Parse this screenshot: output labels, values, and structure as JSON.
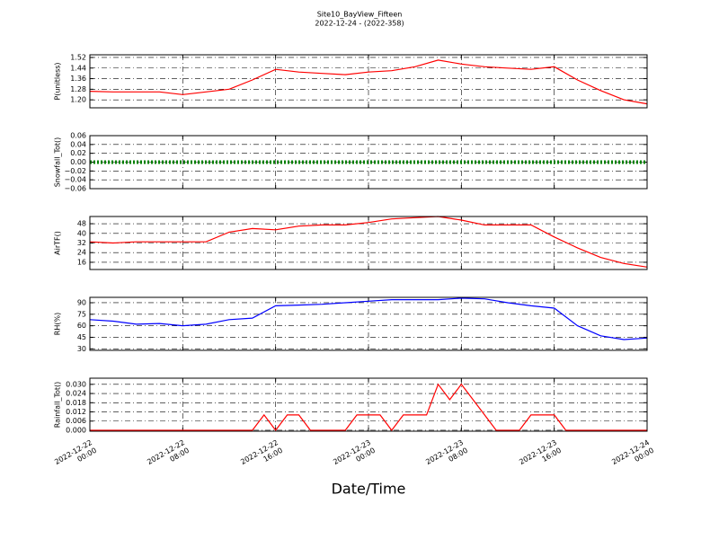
{
  "figure": {
    "title": "Site10_BayView_Fifteen",
    "subtitle": "2022-12-24 - (2022-358)",
    "xlabel": "Date/Time"
  },
  "chart_data": [
    {
      "type": "line",
      "ylabel": "P(unitless)",
      "color": "#ff0000",
      "grid": true,
      "x": [
        "2022-12-22 00:00",
        "2022-12-22 02:00",
        "2022-12-22 04:00",
        "2022-12-22 06:00",
        "2022-12-22 08:00",
        "2022-12-22 10:00",
        "2022-12-22 12:00",
        "2022-12-22 14:00",
        "2022-12-22 16:00",
        "2022-12-22 18:00",
        "2022-12-22 20:00",
        "2022-12-22 22:00",
        "2022-12-23 00:00",
        "2022-12-23 02:00",
        "2022-12-23 04:00",
        "2022-12-23 06:00",
        "2022-12-23 08:00",
        "2022-12-23 10:00",
        "2022-12-23 12:00",
        "2022-12-23 14:00",
        "2022-12-23 16:00",
        "2022-12-23 18:00",
        "2022-12-23 20:00",
        "2022-12-23 22:00",
        "2022-12-24 00:00"
      ],
      "values": [
        1.265,
        1.26,
        1.26,
        1.26,
        1.24,
        1.26,
        1.28,
        1.35,
        1.43,
        1.41,
        1.4,
        1.39,
        1.41,
        1.42,
        1.45,
        1.5,
        1.47,
        1.45,
        1.44,
        1.43,
        1.45,
        1.35,
        1.27,
        1.2,
        1.17
      ],
      "xlim": [
        "2022-12-22 00:00",
        "2022-12-24 00:00"
      ],
      "xticks": [
        "2022-12-22 00:00",
        "2022-12-22 08:00",
        "2022-12-22 16:00",
        "2022-12-23 00:00",
        "2022-12-23 08:00",
        "2022-12-23 16:00",
        "2022-12-24 00:00"
      ],
      "ylim": [
        1.14,
        1.54
      ],
      "yticks": [
        {
          "value": 1.2,
          "label": "1.20"
        },
        {
          "value": 1.28,
          "label": "1.28"
        },
        {
          "value": 1.36,
          "label": "1.36"
        },
        {
          "value": 1.44,
          "label": "1.44"
        },
        {
          "value": 1.52,
          "label": "1.52"
        }
      ]
    },
    {
      "type": "line",
      "ylabel": "Snowfall_Tot()",
      "color": "#008000",
      "linestyle": "dotted",
      "grid": true,
      "x": [
        "2022-12-22 00:00",
        "2022-12-22 02:00",
        "2022-12-22 04:00",
        "2022-12-22 06:00",
        "2022-12-22 08:00",
        "2022-12-22 10:00",
        "2022-12-22 12:00",
        "2022-12-22 14:00",
        "2022-12-22 16:00",
        "2022-12-22 18:00",
        "2022-12-22 20:00",
        "2022-12-22 22:00",
        "2022-12-23 00:00",
        "2022-12-23 02:00",
        "2022-12-23 04:00",
        "2022-12-23 06:00",
        "2022-12-23 08:00",
        "2022-12-23 10:00",
        "2022-12-23 12:00",
        "2022-12-23 14:00",
        "2022-12-23 16:00",
        "2022-12-23 18:00",
        "2022-12-23 20:00",
        "2022-12-23 22:00",
        "2022-12-24 00:00"
      ],
      "values": [
        0,
        0,
        0,
        0,
        0,
        0,
        0,
        0,
        0,
        0,
        0,
        0,
        0,
        0,
        0,
        0,
        0,
        0,
        0,
        0,
        0,
        0,
        0,
        0,
        0
      ],
      "xlim": [
        "2022-12-22 00:00",
        "2022-12-24 00:00"
      ],
      "xticks": [
        "2022-12-22 00:00",
        "2022-12-22 08:00",
        "2022-12-22 16:00",
        "2022-12-23 00:00",
        "2022-12-23 08:00",
        "2022-12-23 16:00",
        "2022-12-24 00:00"
      ],
      "ylim": [
        -0.06,
        0.06
      ],
      "yticks": [
        {
          "value": -0.06,
          "label": "−0.06"
        },
        {
          "value": -0.04,
          "label": "−0.04"
        },
        {
          "value": -0.02,
          "label": "−0.02"
        },
        {
          "value": 0,
          "label": "0.00"
        },
        {
          "value": 0.02,
          "label": "0.02"
        },
        {
          "value": 0.04,
          "label": "0.04"
        },
        {
          "value": 0.06,
          "label": "0.06"
        }
      ]
    },
    {
      "type": "line",
      "ylabel": "AirTF()",
      "color": "#ff0000",
      "grid": true,
      "x": [
        "2022-12-22 00:00",
        "2022-12-22 02:00",
        "2022-12-22 04:00",
        "2022-12-22 06:00",
        "2022-12-22 08:00",
        "2022-12-22 10:00",
        "2022-12-22 12:00",
        "2022-12-22 14:00",
        "2022-12-22 16:00",
        "2022-12-22 18:00",
        "2022-12-22 20:00",
        "2022-12-22 22:00",
        "2022-12-23 00:00",
        "2022-12-23 02:00",
        "2022-12-23 04:00",
        "2022-12-23 06:00",
        "2022-12-23 08:00",
        "2022-12-23 10:00",
        "2022-12-23 12:00",
        "2022-12-23 14:00",
        "2022-12-23 16:00",
        "2022-12-23 18:00",
        "2022-12-23 20:00",
        "2022-12-23 22:00",
        "2022-12-24 00:00"
      ],
      "values": [
        33,
        32,
        33,
        33,
        33,
        33,
        41,
        44,
        43,
        46,
        47,
        47,
        49,
        52,
        53,
        54,
        51,
        47,
        47,
        47,
        37,
        28,
        20,
        15,
        12
      ],
      "xlim": [
        "2022-12-22 00:00",
        "2022-12-24 00:00"
      ],
      "xticks": [
        "2022-12-22 00:00",
        "2022-12-22 08:00",
        "2022-12-22 16:00",
        "2022-12-23 00:00",
        "2022-12-23 08:00",
        "2022-12-23 16:00",
        "2022-12-24 00:00"
      ],
      "ylim": [
        10,
        54
      ],
      "yticks": [
        16,
        24,
        32,
        40,
        48
      ]
    },
    {
      "type": "line",
      "ylabel": "RH(%)",
      "color": "#0000ff",
      "grid": true,
      "x": [
        "2022-12-22 00:00",
        "2022-12-22 02:00",
        "2022-12-22 04:00",
        "2022-12-22 06:00",
        "2022-12-22 08:00",
        "2022-12-22 10:00",
        "2022-12-22 12:00",
        "2022-12-22 14:00",
        "2022-12-22 16:00",
        "2022-12-22 18:00",
        "2022-12-22 20:00",
        "2022-12-22 22:00",
        "2022-12-23 00:00",
        "2022-12-23 02:00",
        "2022-12-23 04:00",
        "2022-12-23 06:00",
        "2022-12-23 08:00",
        "2022-12-23 10:00",
        "2022-12-23 12:00",
        "2022-12-23 14:00",
        "2022-12-23 16:00",
        "2022-12-23 18:00",
        "2022-12-23 20:00",
        "2022-12-23 22:00",
        "2022-12-24 00:00"
      ],
      "values": [
        68,
        66,
        62,
        63,
        60,
        62,
        68,
        70,
        86,
        87,
        88,
        90,
        92,
        94,
        94,
        94,
        96,
        95,
        90,
        86,
        83,
        60,
        47,
        42,
        44
      ],
      "xlim": [
        "2022-12-22 00:00",
        "2022-12-24 00:00"
      ],
      "xticks": [
        "2022-12-22 00:00",
        "2022-12-22 08:00",
        "2022-12-22 16:00",
        "2022-12-23 00:00",
        "2022-12-23 08:00",
        "2022-12-23 16:00",
        "2022-12-24 00:00"
      ],
      "ylim": [
        28,
        97
      ],
      "yticks": [
        30,
        45,
        60,
        75,
        90
      ]
    },
    {
      "type": "line",
      "ylabel": "Rainfall_Tot()",
      "color": "#ff0000",
      "grid": true,
      "x": [
        "2022-12-22 00:00",
        "2022-12-22 01:00",
        "2022-12-22 02:00",
        "2022-12-22 03:00",
        "2022-12-22 04:00",
        "2022-12-22 05:00",
        "2022-12-22 06:00",
        "2022-12-22 07:00",
        "2022-12-22 08:00",
        "2022-12-22 09:00",
        "2022-12-22 10:00",
        "2022-12-22 11:00",
        "2022-12-22 12:00",
        "2022-12-22 13:00",
        "2022-12-22 14:00",
        "2022-12-22 15:00",
        "2022-12-22 16:00",
        "2022-12-22 17:00",
        "2022-12-22 18:00",
        "2022-12-22 19:00",
        "2022-12-22 20:00",
        "2022-12-22 21:00",
        "2022-12-22 22:00",
        "2022-12-22 23:00",
        "2022-12-23 00:00",
        "2022-12-23 01:00",
        "2022-12-23 02:00",
        "2022-12-23 03:00",
        "2022-12-23 04:00",
        "2022-12-23 05:00",
        "2022-12-23 06:00",
        "2022-12-23 07:00",
        "2022-12-23 08:00",
        "2022-12-23 09:00",
        "2022-12-23 10:00",
        "2022-12-23 11:00",
        "2022-12-23 12:00",
        "2022-12-23 13:00",
        "2022-12-23 14:00",
        "2022-12-23 15:00",
        "2022-12-23 16:00",
        "2022-12-23 17:00",
        "2022-12-23 18:00",
        "2022-12-23 19:00",
        "2022-12-23 20:00",
        "2022-12-23 21:00",
        "2022-12-23 22:00",
        "2022-12-23 23:00",
        "2022-12-24 00:00"
      ],
      "values": [
        0,
        0,
        0,
        0,
        0,
        0,
        0,
        0,
        0,
        0,
        0,
        0,
        0,
        0,
        0,
        0.01,
        0,
        0.01,
        0.01,
        0,
        0,
        0,
        0,
        0.01,
        0.01,
        0.01,
        0,
        0.01,
        0.01,
        0.01,
        0.03,
        0.02,
        0.03,
        0.02,
        0.01,
        0,
        0,
        0,
        0.01,
        0.01,
        0.01,
        0,
        0,
        0,
        0,
        0,
        0,
        0,
        0
      ],
      "xlim": [
        "2022-12-22 00:00",
        "2022-12-24 00:00"
      ],
      "xticks": [
        {
          "value": "2022-12-22 00:00",
          "label": "2022-12-22\n00:00"
        },
        {
          "value": "2022-12-22 08:00",
          "label": "2022-12-22\n08:00"
        },
        {
          "value": "2022-12-22 16:00",
          "label": "2022-12-22\n16:00"
        },
        {
          "value": "2022-12-23 00:00",
          "label": "2022-12-23\n00:00"
        },
        {
          "value": "2022-12-23 08:00",
          "label": "2022-12-23\n08:00"
        },
        {
          "value": "2022-12-23 16:00",
          "label": "2022-12-23\n16:00"
        },
        {
          "value": "2022-12-24 00:00",
          "label": "2022-12-24\n00:00"
        }
      ],
      "ylim": [
        -0.0006,
        0.034
      ],
      "yticks": [
        {
          "value": 0,
          "label": "0.000"
        },
        {
          "value": 0.006,
          "label": "0.006"
        },
        {
          "value": 0.012,
          "label": "0.012"
        },
        {
          "value": 0.018,
          "label": "0.018"
        },
        {
          "value": 0.024,
          "label": "0.024"
        },
        {
          "value": 0.03,
          "label": "0.030"
        }
      ]
    }
  ]
}
